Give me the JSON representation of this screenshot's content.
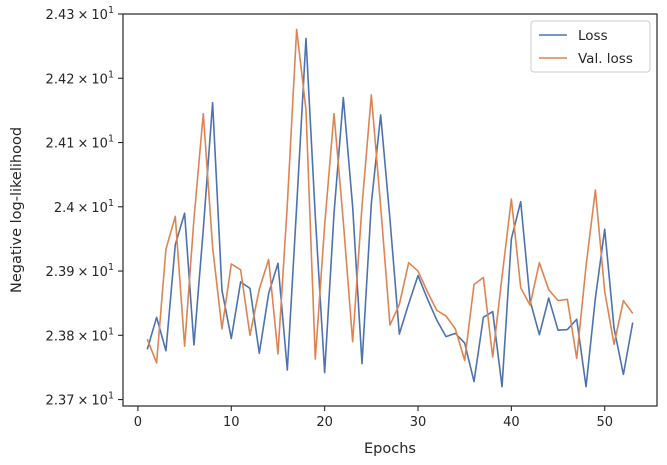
{
  "chart_data": {
    "type": "line",
    "title": "",
    "xlabel": "Epochs",
    "ylabel": "Negative log-likelihood",
    "xlim": [
      -1.6,
      55.6
    ],
    "ylim": [
      23.69,
      24.3
    ],
    "x_ticks": [
      0,
      10,
      20,
      30,
      40,
      50
    ],
    "x_tick_labels": [
      "0",
      "10",
      "20",
      "30",
      "40",
      "50"
    ],
    "y_ticks": [
      23.7,
      23.8,
      23.9,
      24.0,
      24.1,
      24.2,
      24.3
    ],
    "y_tick_labels": [
      {
        "base": "2.37",
        "sep": "×",
        "exp_base": "10",
        "exp": "1"
      },
      {
        "base": "2.38",
        "sep": "×",
        "exp_base": "10",
        "exp": "1"
      },
      {
        "base": "2.39",
        "sep": "×",
        "exp_base": "10",
        "exp": "1"
      },
      {
        "base": "2.4",
        "sep": "×",
        "exp_base": "10",
        "exp": "1"
      },
      {
        "base": "2.41",
        "sep": "×",
        "exp_base": "10",
        "exp": "1"
      },
      {
        "base": "2.42",
        "sep": "×",
        "exp_base": "10",
        "exp": "1"
      },
      {
        "base": "2.43",
        "sep": "×",
        "exp_base": "10",
        "exp": "1"
      }
    ],
    "grid": false,
    "legend_position": "top-right",
    "x": [
      1,
      2,
      3,
      4,
      5,
      6,
      7,
      8,
      9,
      10,
      11,
      12,
      13,
      14,
      15,
      16,
      17,
      18,
      19,
      20,
      21,
      22,
      23,
      24,
      25,
      26,
      27,
      28,
      29,
      30,
      31,
      32,
      33,
      34,
      35,
      36,
      37,
      38,
      39,
      40,
      41,
      42,
      43,
      44,
      45,
      46,
      47,
      48,
      49,
      50,
      51,
      52,
      53
    ],
    "series": [
      {
        "name": "Loss",
        "color": "#4c72b0",
        "values": [
          23.778,
          23.828,
          23.776,
          23.941,
          23.99,
          23.785,
          23.965,
          24.162,
          23.87,
          23.795,
          23.883,
          23.873,
          23.772,
          23.865,
          23.912,
          23.746,
          24.0,
          24.262,
          23.985,
          23.742,
          23.989,
          24.17,
          24.0,
          23.756,
          24.005,
          24.143,
          23.98,
          23.802,
          23.849,
          23.893,
          23.857,
          23.824,
          23.798,
          23.803,
          23.788,
          23.728,
          23.828,
          23.837,
          23.72,
          23.95,
          24.008,
          23.854,
          23.801,
          23.858,
          23.808,
          23.809,
          23.825,
          23.72,
          23.858,
          23.965,
          23.811,
          23.739,
          23.82
        ]
      },
      {
        "name": "Val. loss",
        "color": "#dd8452",
        "values": [
          23.794,
          23.757,
          23.934,
          23.985,
          23.783,
          23.981,
          24.145,
          23.937,
          23.81,
          23.911,
          23.902,
          23.8,
          23.872,
          23.918,
          23.771,
          24.003,
          24.276,
          24.151,
          23.763,
          23.971,
          24.145,
          23.977,
          23.79,
          24.001,
          24.174,
          24.001,
          23.816,
          23.848,
          23.913,
          23.9,
          23.868,
          23.839,
          23.83,
          23.81,
          23.761,
          23.879,
          23.89,
          23.766,
          23.891,
          24.012,
          23.874,
          23.847,
          23.913,
          23.871,
          23.854,
          23.856,
          23.764,
          23.908,
          24.026,
          23.868,
          23.786,
          23.854,
          23.834
        ]
      }
    ]
  }
}
